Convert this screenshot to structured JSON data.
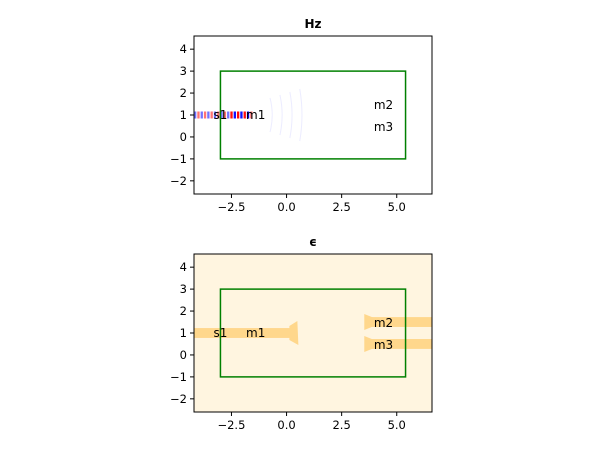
{
  "chart_data": [
    {
      "type": "heatmap",
      "title": "Hz",
      "xlim": [
        -4.2,
        6.6
      ],
      "ylim": [
        -2.6,
        4.6
      ],
      "x_ticks": [
        -2.5,
        0.0,
        2.5,
        5.0
      ],
      "x_tick_labels": [
        "−2.5",
        "0.0",
        "2.5",
        "5.0"
      ],
      "y_ticks": [
        -2,
        -1,
        0,
        1,
        2,
        3,
        4
      ],
      "y_tick_labels": [
        "−2",
        "−1",
        "0",
        "1",
        "2",
        "3",
        "4"
      ],
      "box": {
        "x": [
          -3.0,
          5.4
        ],
        "y": [
          -1.0,
          3.0
        ],
        "color": "#008000"
      },
      "field_wave": {
        "y": 1.0,
        "x_from": -4.2,
        "x_to": -1.6,
        "wavelength": 0.3,
        "colors": [
          "#0000ff",
          "#ff0000"
        ]
      },
      "markers": [
        {
          "label": "s1",
          "x": -3.0,
          "y": 1.0
        },
        {
          "label": "m1",
          "x": -1.4,
          "y": 1.0
        },
        {
          "label": "m2",
          "x": 4.4,
          "y": 1.45
        },
        {
          "label": "m3",
          "x": 4.4,
          "y": 0.45
        }
      ]
    },
    {
      "type": "heatmap",
      "title": "ϵ",
      "xlim": [
        -4.2,
        6.6
      ],
      "ylim": [
        -2.6,
        4.6
      ],
      "x_ticks": [
        -2.5,
        0.0,
        2.5,
        5.0
      ],
      "x_tick_labels": [
        "−2.5",
        "0.0",
        "2.5",
        "5.0"
      ],
      "y_ticks": [
        -2,
        -1,
        0,
        1,
        2,
        3,
        4
      ],
      "y_tick_labels": [
        "−2",
        "−1",
        "0",
        "1",
        "2",
        "3",
        "4"
      ],
      "box": {
        "x": [
          -3.0,
          5.4
        ],
        "y": [
          -1.0,
          3.0
        ],
        "color": "#008000"
      },
      "background_color": "#fff5e0",
      "structure_color": "#ffd78c",
      "waveguides": [
        {
          "x": [
            -4.2,
            0.4
          ],
          "y_center": 1.0,
          "width": 0.45
        },
        {
          "x": [
            3.8,
            6.6
          ],
          "y_center": 1.5,
          "width": 0.45
        },
        {
          "x": [
            3.8,
            6.6
          ],
          "y_center": 0.5,
          "width": 0.45
        }
      ],
      "markers": [
        {
          "label": "s1",
          "x": -3.0,
          "y": 1.0
        },
        {
          "label": "m1",
          "x": -1.4,
          "y": 1.0
        },
        {
          "label": "m2",
          "x": 4.4,
          "y": 1.45
        },
        {
          "label": "m3",
          "x": 4.4,
          "y": 0.45
        }
      ]
    }
  ]
}
